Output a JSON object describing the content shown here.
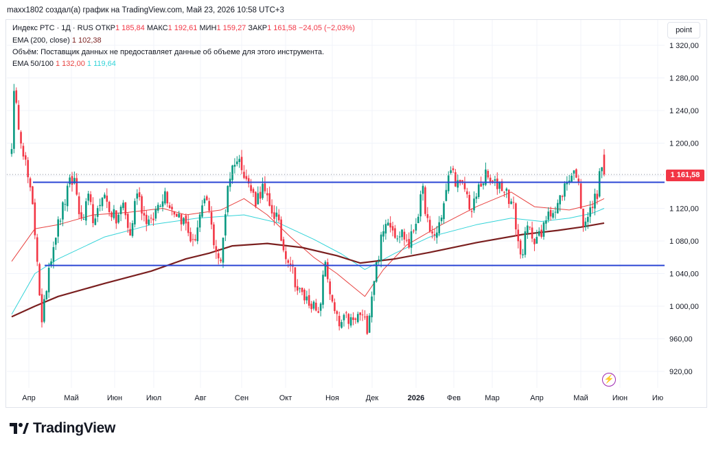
{
  "header": {
    "text": "maxx1802 создал(а) график на TradingView.com, Май 23, 2026 10:58 UTC+3"
  },
  "legend": {
    "symbol": "Индекс РТС · 1Д · RUS",
    "open_label": "ОТКР",
    "open": "1 185,84",
    "high_label": "МАКС",
    "high": "1 192,61",
    "low_label": "МИН",
    "low": "1 159,27",
    "close_label": "ЗАКР",
    "close": "1 161,58",
    "change": "−24,05 (−2,03%)",
    "ema200_label": "EMA (200, close)",
    "ema200_value": "1 102,38",
    "volume_note": "Объём: Поставщик данных не предоставляет данные об объеме для этого инструмента.",
    "ema50_100_label": "EMA 50/100",
    "ema50_value": "1 132,00",
    "ema100_value": "1 119,64"
  },
  "scale_button": "point",
  "price_badge": "1 161,58",
  "logo_text": "TradingView",
  "colors": {
    "up": "#089981",
    "down": "#f23645",
    "ema200": "#7a1f1f",
    "ema50": "#e8413f",
    "ema100": "#31d3d8",
    "level": "#2a45d4",
    "grid": "#f0f3fa"
  },
  "chart_data": {
    "type": "candlestick",
    "y_ticks": [
      "1 320,00",
      "1 280,00",
      "1 240,00",
      "1 200,00",
      "1 160,00",
      "1 120,00",
      "1 080,00",
      "1 040,00",
      "1 000,00",
      "960,00",
      "920,00"
    ],
    "ylim": [
      900,
      1340
    ],
    "x_ticks": [
      "Апр",
      "Май",
      "Июн",
      "Июл",
      "Авг",
      "Сен",
      "Окт",
      "Ноя",
      "Дек",
      "2026",
      "Фев",
      "Мар",
      "Апр",
      "Май",
      "Июн",
      "Ию"
    ],
    "horizontal_levels": [
      1152,
      1050
    ],
    "close_path": [
      [
        0,
        1200
      ],
      [
        1,
        1258
      ],
      [
        3,
        1225
      ],
      [
        6,
        1175
      ],
      [
        9,
        1120
      ],
      [
        11,
        1060
      ],
      [
        13,
        975
      ],
      [
        16,
        1050
      ],
      [
        19,
        1090
      ],
      [
        22,
        1120
      ],
      [
        25,
        1150
      ],
      [
        27,
        1155
      ],
      [
        30,
        1100
      ],
      [
        33,
        1130
      ],
      [
        36,
        1100
      ],
      [
        39,
        1140
      ],
      [
        42,
        1120
      ],
      [
        45,
        1105
      ],
      [
        48,
        1125
      ],
      [
        51,
        1085
      ],
      [
        54,
        1145
      ],
      [
        57,
        1110
      ],
      [
        60,
        1100
      ],
      [
        63,
        1125
      ],
      [
        66,
        1140
      ],
      [
        69,
        1120
      ],
      [
        72,
        1112
      ],
      [
        75,
        1100
      ],
      [
        78,
        1075
      ],
      [
        81,
        1110
      ],
      [
        84,
        1130
      ],
      [
        87,
        1080
      ],
      [
        90,
        1050
      ],
      [
        93,
        1150
      ],
      [
        96,
        1180
      ],
      [
        99,
        1175
      ],
      [
        102,
        1148
      ],
      [
        105,
        1130
      ],
      [
        108,
        1145
      ],
      [
        111,
        1120
      ],
      [
        114,
        1110
      ],
      [
        117,
        1070
      ],
      [
        120,
        1055
      ],
      [
        123,
        1020
      ],
      [
        126,
        1010
      ],
      [
        129,
        1005
      ],
      [
        132,
        985
      ],
      [
        135,
        1055
      ],
      [
        138,
        1000
      ],
      [
        141,
        975
      ],
      [
        144,
        985
      ],
      [
        147,
        980
      ],
      [
        150,
        990
      ],
      [
        153,
        975
      ],
      [
        156,
        1035
      ],
      [
        159,
        1080
      ],
      [
        162,
        1110
      ],
      [
        165,
        1090
      ],
      [
        168,
        1090
      ],
      [
        171,
        1075
      ],
      [
        174,
        1105
      ],
      [
        177,
        1140
      ],
      [
        180,
        1085
      ],
      [
        183,
        1090
      ],
      [
        186,
        1125
      ],
      [
        189,
        1170
      ],
      [
        192,
        1148
      ],
      [
        195,
        1145
      ],
      [
        198,
        1115
      ],
      [
        201,
        1145
      ],
      [
        204,
        1160
      ],
      [
        207,
        1148
      ],
      [
        210,
        1150
      ],
      [
        213,
        1140
      ],
      [
        216,
        1120
      ],
      [
        219,
        1060
      ],
      [
        222,
        1095
      ],
      [
        225,
        1085
      ],
      [
        228,
        1085
      ],
      [
        231,
        1120
      ],
      [
        234,
        1115
      ],
      [
        237,
        1140
      ],
      [
        240,
        1160
      ],
      [
        243,
        1165
      ],
      [
        246,
        1105
      ],
      [
        249,
        1115
      ],
      [
        252,
        1140
      ],
      [
        254,
        1175
      ],
      [
        255,
        1160
      ]
    ],
    "ema200": [
      [
        0,
        987
      ],
      [
        10,
        1000
      ],
      [
        20,
        1012
      ],
      [
        40,
        1028
      ],
      [
        60,
        1043
      ],
      [
        75,
        1058
      ],
      [
        85,
        1065
      ],
      [
        95,
        1074
      ],
      [
        110,
        1077
      ],
      [
        125,
        1072
      ],
      [
        140,
        1062
      ],
      [
        150,
        1053
      ],
      [
        165,
        1058
      ],
      [
        180,
        1066
      ],
      [
        200,
        1078
      ],
      [
        220,
        1088
      ],
      [
        235,
        1093
      ],
      [
        245,
        1097
      ],
      [
        255,
        1102
      ]
    ],
    "ema50": [
      [
        0,
        1055
      ],
      [
        10,
        1095
      ],
      [
        20,
        1100
      ],
      [
        35,
        1112
      ],
      [
        50,
        1115
      ],
      [
        65,
        1120
      ],
      [
        75,
        1112
      ],
      [
        90,
        1118
      ],
      [
        100,
        1132
      ],
      [
        110,
        1112
      ],
      [
        120,
        1085
      ],
      [
        130,
        1060
      ],
      [
        140,
        1040
      ],
      [
        152,
        1012
      ],
      [
        160,
        1045
      ],
      [
        170,
        1075
      ],
      [
        185,
        1100
      ],
      [
        200,
        1122
      ],
      [
        215,
        1140
      ],
      [
        225,
        1122
      ],
      [
        240,
        1118
      ],
      [
        250,
        1125
      ],
      [
        255,
        1132
      ]
    ],
    "ema100": [
      [
        0,
        990
      ],
      [
        10,
        1040
      ],
      [
        20,
        1058
      ],
      [
        40,
        1085
      ],
      [
        60,
        1100
      ],
      [
        80,
        1108
      ],
      [
        100,
        1112
      ],
      [
        115,
        1102
      ],
      [
        130,
        1082
      ],
      [
        142,
        1064
      ],
      [
        152,
        1045
      ],
      [
        165,
        1065
      ],
      [
        180,
        1085
      ],
      [
        200,
        1100
      ],
      [
        215,
        1108
      ],
      [
        228,
        1104
      ],
      [
        240,
        1108
      ],
      [
        250,
        1114
      ],
      [
        255,
        1120
      ]
    ]
  }
}
